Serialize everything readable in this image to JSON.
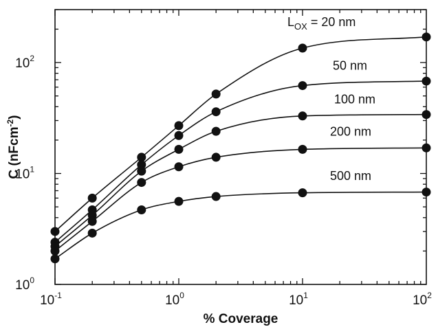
{
  "chart_data": {
    "type": "line",
    "xlabel": "% Coverage",
    "ylabel": "C (nFcm",
    "ylabel_sup": "-2",
    "ylabel_close": ")",
    "xscale": "log",
    "yscale": "log",
    "xlim": [
      0.1,
      100
    ],
    "ylim": [
      1,
      300
    ],
    "grid": false,
    "x_ticks": [
      {
        "value": 0.1,
        "base": "10",
        "exp": "-1"
      },
      {
        "value": 1,
        "base": "10",
        "exp": "0"
      },
      {
        "value": 10,
        "base": "10",
        "exp": "1"
      },
      {
        "value": 100,
        "base": "10",
        "exp": "2"
      }
    ],
    "y_ticks": [
      {
        "value": 1,
        "base": "10",
        "exp": "0"
      },
      {
        "value": 10,
        "base": "10",
        "exp": "1"
      },
      {
        "value": 100,
        "base": "10",
        "exp": "2"
      }
    ],
    "x": [
      0.1,
      0.2,
      0.5,
      1,
      2,
      10,
      100
    ],
    "series": [
      {
        "name": "20 nm",
        "label_prefix": "L",
        "label_sub": "OX",
        "label_rest": " = 20 nm",
        "values": [
          3.0,
          6.0,
          14.0,
          27.0,
          52.0,
          135.0,
          170.0
        ]
      },
      {
        "name": "50 nm",
        "values": [
          2.4,
          4.7,
          12.0,
          22.0,
          36.0,
          62.0,
          68.0
        ]
      },
      {
        "name": "100 nm",
        "values": [
          2.2,
          4.2,
          10.5,
          16.5,
          24.0,
          33.0,
          34.0
        ]
      },
      {
        "name": "200 nm",
        "values": [
          2.0,
          3.7,
          8.3,
          11.5,
          14.0,
          16.5,
          17.0
        ]
      },
      {
        "name": "500 nm",
        "values": [
          1.7,
          2.9,
          4.7,
          5.6,
          6.2,
          6.7,
          6.8
        ]
      }
    ]
  }
}
